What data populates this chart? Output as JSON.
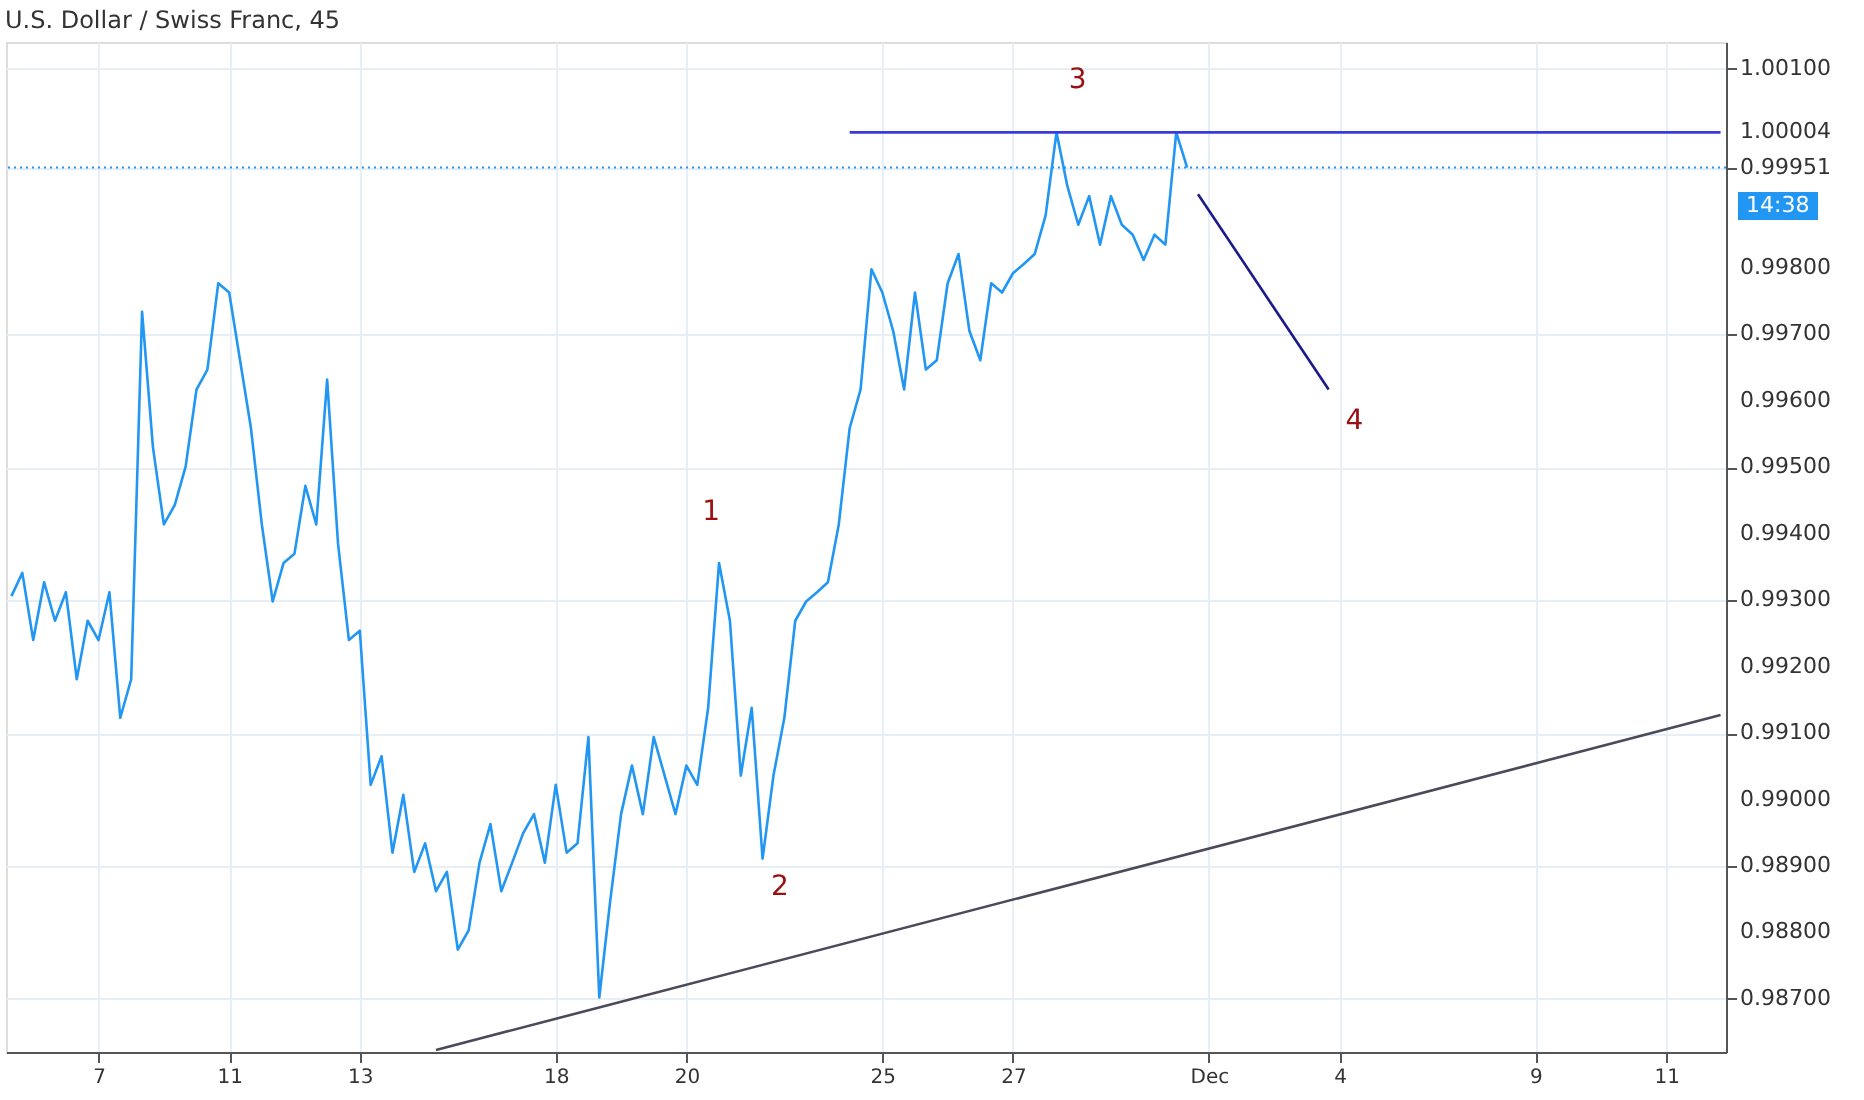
{
  "chart_data": {
    "type": "line",
    "title": "U.S. Dollar / Swiss Franc, 45",
    "categories": [
      null,
      null,
      null,
      null,
      null,
      null,
      null,
      null,
      "7",
      null,
      null,
      null,
      null,
      null,
      null,
      null,
      null,
      null,
      null,
      null,
      "11",
      null,
      null,
      null,
      null,
      null,
      null,
      null,
      null,
      null,
      null,
      null,
      "13",
      null,
      null,
      null,
      null,
      null,
      null,
      null,
      null,
      null,
      null,
      null,
      null,
      null,
      null,
      null,
      null,
      null,
      "18",
      null,
      null,
      null,
      null,
      null,
      null,
      null,
      null,
      null,
      null,
      null,
      "20",
      null,
      null,
      null,
      null,
      null,
      null,
      null,
      null,
      null,
      null,
      null,
      null,
      null,
      null,
      null,
      null,
      null,
      "25",
      null,
      null,
      null,
      null,
      null,
      null,
      null,
      null,
      null,
      null,
      null,
      "27",
      null,
      null,
      null,
      null,
      null,
      null,
      null,
      null,
      null,
      null,
      null,
      null,
      null,
      null,
      null,
      null,
      null,
      "Dec",
      null,
      null,
      null,
      null,
      null,
      null,
      null,
      null,
      null,
      null,
      null,
      "4",
      null,
      null,
      null,
      null,
      null,
      null,
      null,
      null,
      null,
      null,
      null,
      null,
      null,
      null,
      null,
      null,
      null,
      "9",
      null,
      null,
      null,
      null,
      null,
      null,
      null,
      null,
      null,
      null,
      null,
      "11",
      null,
      null,
      null,
      null,
      null
    ],
    "ylim": [
      0.9862,
      1.0014
    ],
    "yticks": [
      {
        "value": 0.987,
        "label": "0.98700"
      },
      {
        "value": 0.988,
        "label": "0.98800"
      },
      {
        "value": 0.989,
        "label": "0.98900"
      },
      {
        "value": 0.99,
        "label": "0.99000"
      },
      {
        "value": 0.991,
        "label": "0.99100"
      },
      {
        "value": 0.992,
        "label": "0.99200"
      },
      {
        "value": 0.993,
        "label": "0.99300"
      },
      {
        "value": 0.994,
        "label": "0.99400"
      },
      {
        "value": 0.995,
        "label": "0.99500"
      },
      {
        "value": 0.996,
        "label": "0.99600"
      },
      {
        "value": 0.997,
        "label": "0.99700"
      },
      {
        "value": 0.998,
        "label": "0.99800"
      },
      {
        "value": 1.001,
        "label": "1.00100"
      },
      {
        "value": 1.00004,
        "label": "1.00004"
      },
      {
        "value": 0.99951,
        "label": "0.99951"
      }
    ],
    "grid": true,
    "series": [
      {
        "color": "#2196f3",
        "values": [
          0.99306,
          0.99341,
          0.9924,
          0.99327,
          0.99269,
          0.99312,
          0.99181,
          0.99269,
          0.9924,
          0.99312,
          0.99123,
          0.99181,
          0.99734,
          0.9953,
          0.99414,
          0.99443,
          0.99501,
          0.99617,
          0.99647,
          0.99777,
          0.99763,
          0.99661,
          0.99559,
          0.99414,
          0.99298,
          0.99356,
          0.9937,
          0.99472,
          0.99414,
          0.99632,
          0.99385,
          0.9924,
          0.99254,
          0.99022,
          0.99065,
          0.9892,
          0.99007,
          0.98891,
          0.98934,
          0.98862,
          0.98891,
          0.98774,
          0.98803,
          0.98905,
          0.98963,
          0.98862,
          0.98905,
          0.98949,
          0.98978,
          0.98905,
          0.99022,
          0.9892,
          0.98934,
          0.99094,
          0.98702,
          0.98847,
          0.98978,
          0.99051,
          0.98978,
          0.99094,
          0.99036,
          0.98978,
          0.99051,
          0.99022,
          0.99138,
          0.99356,
          0.99269,
          0.99036,
          0.99138,
          0.98911,
          0.99036,
          0.99123,
          0.99269,
          0.99298,
          0.99312,
          0.99327,
          0.99414,
          0.99559,
          0.99617,
          0.99798,
          0.99763,
          0.99705,
          0.99617,
          0.99763,
          0.99647,
          0.99661,
          0.99777,
          0.99821,
          0.99705,
          0.99661,
          0.99777,
          0.99763,
          0.99792,
          0.99806,
          0.99821,
          0.99879,
          1.00004,
          0.99923,
          0.99865,
          0.99908,
          0.99835,
          0.99908,
          0.99865,
          0.9985,
          0.99812,
          0.9985,
          0.99835,
          1.00004,
          0.99951,
          null,
          null,
          null,
          null,
          null,
          null,
          null,
          null,
          null,
          null,
          null,
          null,
          null,
          null,
          null,
          null,
          null,
          null,
          null,
          null,
          null,
          null,
          null,
          null,
          null,
          null,
          null,
          null,
          null,
          null,
          null,
          null,
          null,
          null,
          null,
          null,
          null,
          null,
          null,
          null,
          null,
          null,
          null,
          null,
          null,
          null,
          null,
          null,
          null
        ]
      },
      {
        "color": "#4a4a5a",
        "values": [
          null,
          null,
          null,
          null,
          null,
          null,
          null,
          null,
          null,
          null,
          null,
          null,
          null,
          null,
          null,
          null,
          null,
          null,
          null,
          null,
          null,
          null,
          null,
          null,
          null,
          null,
          null,
          null,
          null,
          null,
          null,
          null,
          null,
          null,
          null,
          null,
          null,
          null,
          null,
          0.98623,
          null,
          null,
          null,
          null,
          null,
          null,
          null,
          null,
          null,
          null,
          null,
          null,
          null,
          null,
          null,
          null,
          null,
          null,
          null,
          null,
          null,
          null,
          null,
          null,
          null,
          null,
          null,
          null,
          null,
          null,
          null,
          null,
          null,
          null,
          null,
          null,
          null,
          null,
          null,
          null,
          null,
          null,
          null,
          null,
          null,
          null,
          null,
          null,
          null,
          null,
          null,
          null,
          null,
          null,
          null,
          null,
          null,
          null,
          null,
          null,
          null,
          null,
          null,
          null,
          null,
          null,
          null,
          null,
          null,
          null,
          null,
          null,
          null,
          null,
          null,
          null,
          null,
          null,
          null,
          null,
          null,
          null,
          null,
          null,
          null,
          null,
          null,
          null,
          null,
          null,
          null,
          null,
          null,
          null,
          null,
          null,
          null,
          null,
          null,
          null,
          null,
          null,
          null,
          null,
          null,
          null,
          null,
          null,
          null,
          null,
          null,
          null,
          null,
          null,
          null,
          null,
          null,
          0.99127
        ]
      },
      {
        "color": "#3a3ae0",
        "values": [
          null,
          null,
          null,
          null,
          null,
          null,
          null,
          null,
          null,
          null,
          null,
          null,
          null,
          null,
          null,
          null,
          null,
          null,
          null,
          null,
          null,
          null,
          null,
          null,
          null,
          null,
          null,
          null,
          null,
          null,
          null,
          null,
          null,
          null,
          null,
          null,
          null,
          null,
          null,
          null,
          null,
          null,
          null,
          null,
          null,
          null,
          null,
          null,
          null,
          null,
          null,
          null,
          null,
          null,
          null,
          null,
          null,
          null,
          null,
          null,
          null,
          null,
          null,
          null,
          null,
          null,
          null,
          null,
          null,
          null,
          null,
          null,
          null,
          null,
          null,
          null,
          null,
          1.00004,
          null,
          null,
          null,
          null,
          null,
          null,
          null,
          null,
          null,
          null,
          null,
          null,
          null,
          null,
          null,
          null,
          null,
          null,
          null,
          null,
          null,
          null,
          null,
          null,
          null,
          null,
          null,
          null,
          null,
          null,
          null,
          null,
          null,
          null,
          null,
          null,
          null,
          null,
          null,
          null,
          null,
          null,
          null,
          null,
          null,
          null,
          null,
          null,
          null,
          null,
          null,
          null,
          null,
          null,
          null,
          null,
          null,
          null,
          null,
          null,
          null,
          null,
          null,
          null,
          null,
          null,
          null,
          null,
          null,
          null,
          null,
          null,
          null,
          null,
          null,
          null,
          null,
          null,
          null,
          1.00004
        ]
      },
      {
        "color": "#1a1a8a",
        "values": [
          null,
          null,
          null,
          null,
          null,
          null,
          null,
          null,
          null,
          null,
          null,
          null,
          null,
          null,
          null,
          null,
          null,
          null,
          null,
          null,
          null,
          null,
          null,
          null,
          null,
          null,
          null,
          null,
          null,
          null,
          null,
          null,
          null,
          null,
          null,
          null,
          null,
          null,
          null,
          null,
          null,
          null,
          null,
          null,
          null,
          null,
          null,
          null,
          null,
          null,
          null,
          null,
          null,
          null,
          null,
          null,
          null,
          null,
          null,
          null,
          null,
          null,
          null,
          null,
          null,
          null,
          null,
          null,
          null,
          null,
          null,
          null,
          null,
          null,
          null,
          null,
          null,
          null,
          null,
          null,
          null,
          null,
          null,
          null,
          null,
          null,
          null,
          null,
          null,
          null,
          null,
          null,
          null,
          null,
          null,
          null,
          null,
          null,
          null,
          null,
          null,
          null,
          null,
          null,
          null,
          null,
          null,
          null,
          null,
          0.99911,
          null,
          null,
          null,
          null,
          null,
          null,
          null,
          null,
          null,
          null,
          null,
          0.99617,
          null,
          null,
          null,
          null,
          null,
          null,
          null,
          null,
          null,
          null,
          null,
          null,
          null,
          null,
          null,
          null,
          null,
          null,
          null,
          null,
          null,
          null,
          null,
          null,
          null,
          null,
          null,
          null,
          null,
          null,
          null,
          null,
          null,
          null,
          null,
          null
        ]
      }
    ],
    "ref_lines": [
      {
        "axis": "y",
        "value": 0.99951,
        "color": "#2196f3",
        "line_style": "dotted"
      }
    ],
    "annotations": [
      "1",
      "2",
      "3",
      "4",
      "14:38"
    ]
  }
}
